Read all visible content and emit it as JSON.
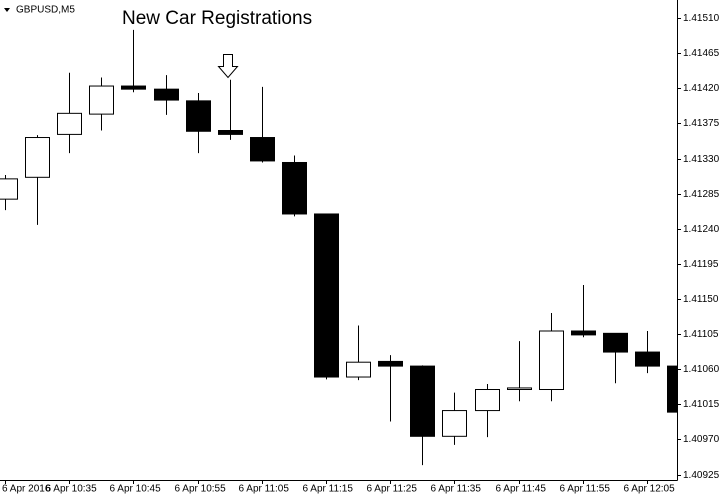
{
  "chart_data": {
    "type": "candlestick",
    "title": "GBPUSD,M5",
    "annotation": "New Car Registrations",
    "categories": [
      "6 Apr 2016",
      null,
      "6 Apr 10:35",
      null,
      "6 Apr 10:45",
      null,
      "6 Apr 10:55",
      null,
      "6 Apr 11:05",
      null,
      "6 Apr 11:15",
      null,
      "6 Apr 11:25",
      null,
      "6 Apr 11:35",
      null,
      "6 Apr 11:45",
      null,
      "6 Apr 11:55",
      null,
      "6 Apr 12:05",
      null
    ],
    "open": [
      1.41278,
      1.41306,
      1.41361,
      1.41387,
      1.41423,
      1.41419,
      1.41404,
      1.41366,
      1.41357,
      1.41325,
      1.41259,
      1.4105,
      1.4107,
      1.41064,
      1.40974,
      1.41007,
      1.41034,
      1.41034,
      1.41109,
      1.41106,
      1.41082,
      1.41064
    ],
    "high": [
      1.41309,
      1.4136,
      1.4144,
      1.41434,
      1.41495,
      1.41437,
      1.41414,
      1.41431,
      1.41422,
      1.41334,
      1.41259,
      1.41116,
      1.41078,
      1.41065,
      1.4103,
      1.41041,
      1.41096,
      1.41132,
      1.41168,
      1.41106,
      1.41109,
      1.41078
    ],
    "low": [
      1.41264,
      1.41245,
      1.41337,
      1.41366,
      1.41415,
      1.41386,
      1.41337,
      1.41354,
      1.41325,
      1.41256,
      1.41047,
      1.41046,
      1.40993,
      1.40937,
      1.40963,
      1.40973,
      1.41019,
      1.41019,
      1.41101,
      1.41042,
      1.41055,
      1.41005
    ],
    "close": [
      1.41304,
      1.41357,
      1.41388,
      1.41423,
      1.41419,
      1.41405,
      1.41365,
      1.41361,
      1.41327,
      1.41259,
      1.4105,
      1.41069,
      1.41064,
      1.40974,
      1.41007,
      1.41034,
      1.41036,
      1.41109,
      1.41104,
      1.41082,
      1.41064,
      1.41005
    ],
    "up_color": "#ffffff",
    "down_color": "#000000",
    "ylim": [
      1.40918,
      1.41532
    ],
    "yticks": [
      {
        "value": 1.4151,
        "label": "1.41510"
      },
      {
        "value": 1.41465,
        "label": "1.41465"
      },
      {
        "value": 1.4142,
        "label": "1.41420"
      },
      {
        "value": 1.41375,
        "label": "1.41375"
      },
      {
        "value": 1.4133,
        "label": "1.41330"
      },
      {
        "value": 1.41285,
        "label": "1.41285"
      },
      {
        "value": 1.4124,
        "label": "1.41240"
      },
      {
        "value": 1.41195,
        "label": "1.41195"
      },
      {
        "value": 1.4115,
        "label": "1.41150"
      },
      {
        "value": 1.41105,
        "label": "1.41105"
      },
      {
        "value": 1.4106,
        "label": "1.41060"
      },
      {
        "value": 1.41015,
        "label": "1.41015"
      },
      {
        "value": 1.4097,
        "label": "1.40970"
      },
      {
        "value": 1.40925,
        "label": "1.40925"
      }
    ]
  }
}
